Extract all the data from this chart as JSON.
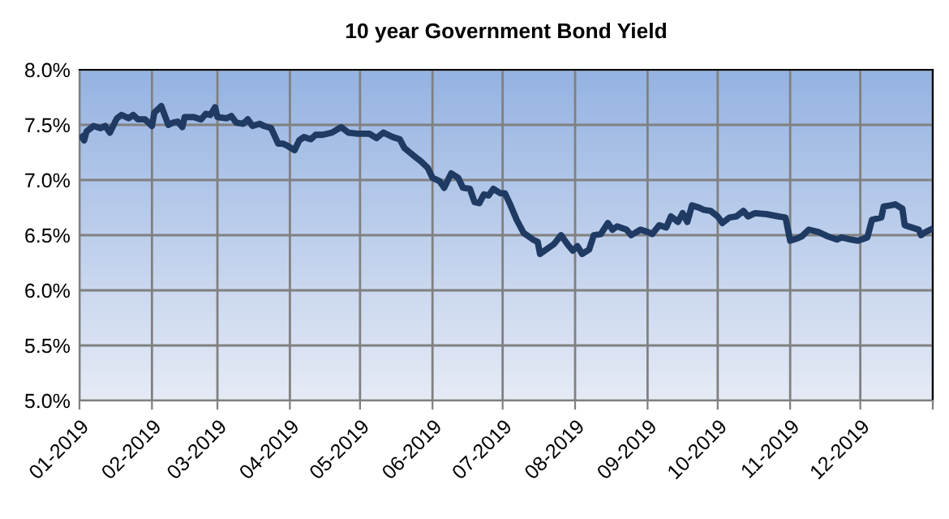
{
  "chart_data": {
    "type": "line",
    "title": "10 year Government Bond Yield",
    "x": [
      "2019-01-02",
      "2019-01-03",
      "2019-01-04",
      "2019-01-07",
      "2019-01-10",
      "2019-01-12",
      "2019-01-14",
      "2019-01-17",
      "2019-01-19",
      "2019-01-22",
      "2019-01-24",
      "2019-01-26",
      "2019-01-29",
      "2019-02-01",
      "2019-02-02",
      "2019-02-05",
      "2019-02-08",
      "2019-02-10",
      "2019-02-12",
      "2019-02-14",
      "2019-02-15",
      "2019-02-19",
      "2019-02-22",
      "2019-02-24",
      "2019-02-26",
      "2019-02-28",
      "2019-03-01",
      "2019-03-05",
      "2019-03-07",
      "2019-03-09",
      "2019-03-12",
      "2019-03-14",
      "2019-03-16",
      "2019-03-19",
      "2019-03-21",
      "2019-03-24",
      "2019-03-27",
      "2019-03-29",
      "2019-03-31",
      "2019-04-03",
      "2019-04-05",
      "2019-04-07",
      "2019-04-10",
      "2019-04-12",
      "2019-04-15",
      "2019-04-19",
      "2019-04-23",
      "2019-04-26",
      "2019-04-30",
      "2019-05-05",
      "2019-05-08",
      "2019-05-11",
      "2019-05-15",
      "2019-05-18",
      "2019-05-20",
      "2019-05-24",
      "2019-05-27",
      "2019-05-30",
      "2019-06-01",
      "2019-06-04",
      "2019-06-06",
      "2019-06-09",
      "2019-06-12",
      "2019-06-14",
      "2019-06-17",
      "2019-06-19",
      "2019-06-21",
      "2019-06-23",
      "2019-06-25",
      "2019-06-27",
      "2019-06-30",
      "2019-07-02",
      "2019-07-04",
      "2019-07-07",
      "2019-07-10",
      "2019-07-14",
      "2019-07-16",
      "2019-07-17",
      "2019-07-19",
      "2019-07-23",
      "2019-07-26",
      "2019-07-29",
      "2019-07-31",
      "2019-08-02",
      "2019-08-04",
      "2019-08-07",
      "2019-08-09",
      "2019-08-12",
      "2019-08-15",
      "2019-08-17",
      "2019-08-19",
      "2019-08-23",
      "2019-08-25",
      "2019-08-29",
      "2019-09-01",
      "2019-09-03",
      "2019-09-06",
      "2019-09-09",
      "2019-09-11",
      "2019-09-14",
      "2019-09-16",
      "2019-09-18",
      "2019-09-20",
      "2019-09-23",
      "2019-09-25",
      "2019-09-28",
      "2019-10-01",
      "2019-10-03",
      "2019-10-06",
      "2019-10-09",
      "2019-10-12",
      "2019-10-14",
      "2019-10-17",
      "2019-10-22",
      "2019-10-27",
      "2019-10-30",
      "2019-11-01",
      "2019-11-04",
      "2019-11-06",
      "2019-11-09",
      "2019-11-13",
      "2019-11-17",
      "2019-11-21",
      "2019-11-23",
      "2019-11-27",
      "2019-11-30",
      "2019-12-04",
      "2019-12-06",
      "2019-12-10",
      "2019-12-11",
      "2019-12-14",
      "2019-12-16",
      "2019-12-19",
      "2019-12-20",
      "2019-12-23",
      "2019-12-26",
      "2019-12-27",
      "2019-12-29",
      "2019-12-31"
    ],
    "series": [
      {
        "color": "#1f3b63",
        "values": [
          7.39,
          7.36,
          7.44,
          7.49,
          7.47,
          7.49,
          7.43,
          7.56,
          7.59,
          7.56,
          7.59,
          7.55,
          7.55,
          7.49,
          7.61,
          7.67,
          7.5,
          7.52,
          7.53,
          7.48,
          7.57,
          7.57,
          7.55,
          7.6,
          7.59,
          7.66,
          7.57,
          7.56,
          7.58,
          7.52,
          7.51,
          7.55,
          7.49,
          7.51,
          7.49,
          7.47,
          7.33,
          7.33,
          7.31,
          7.27,
          7.36,
          7.39,
          7.37,
          7.41,
          7.41,
          7.43,
          7.48,
          7.43,
          7.42,
          7.42,
          7.38,
          7.43,
          7.39,
          7.37,
          7.29,
          7.22,
          7.17,
          7.11,
          7.02,
          6.99,
          6.93,
          7.06,
          7.02,
          6.93,
          6.92,
          6.8,
          6.79,
          6.87,
          6.86,
          6.92,
          6.88,
          6.88,
          6.79,
          6.64,
          6.52,
          6.46,
          6.44,
          6.33,
          6.36,
          6.42,
          6.5,
          6.41,
          6.36,
          6.4,
          6.33,
          6.37,
          6.5,
          6.51,
          6.61,
          6.55,
          6.58,
          6.55,
          6.5,
          6.55,
          6.53,
          6.51,
          6.59,
          6.57,
          6.67,
          6.62,
          6.7,
          6.62,
          6.77,
          6.75,
          6.73,
          6.72,
          6.67,
          6.61,
          6.66,
          6.67,
          6.72,
          6.67,
          6.7,
          6.69,
          6.67,
          6.66,
          6.45,
          6.47,
          6.49,
          6.55,
          6.53,
          6.49,
          6.46,
          6.48,
          6.46,
          6.45,
          6.48,
          6.64,
          6.66,
          6.76,
          6.77,
          6.78,
          6.74,
          6.59,
          6.57,
          6.55,
          6.5,
          6.53,
          6.55
        ]
      }
    ],
    "xlim": [
      "2019-01-01",
      "2020-01-01"
    ],
    "xticks": [
      {
        "value": "2019-01-01",
        "label": "01-2019"
      },
      {
        "value": "2019-02-01",
        "label": "02-2019"
      },
      {
        "value": "2019-03-01",
        "label": "03-2019"
      },
      {
        "value": "2019-04-01",
        "label": "04-2019"
      },
      {
        "value": "2019-05-01",
        "label": "05-2019"
      },
      {
        "value": "2019-06-01",
        "label": "06-2019"
      },
      {
        "value": "2019-07-01",
        "label": "07-2019"
      },
      {
        "value": "2019-08-01",
        "label": "08-2019"
      },
      {
        "value": "2019-09-01",
        "label": "09-2019"
      },
      {
        "value": "2019-10-01",
        "label": "10-2019"
      },
      {
        "value": "2019-11-01",
        "label": "11-2019"
      },
      {
        "value": "2019-12-01",
        "label": "12-2019"
      },
      {
        "value": "2020-01-01",
        "label": null
      }
    ],
    "ylim": [
      5.0,
      8.0
    ],
    "yticks": [
      {
        "value": 5.0,
        "label": "5.0%"
      },
      {
        "value": 5.5,
        "label": "5.5%"
      },
      {
        "value": 6.0,
        "label": "6.0%"
      },
      {
        "value": 6.5,
        "label": "6.5%"
      },
      {
        "value": 7.0,
        "label": "7.0%"
      },
      {
        "value": 7.5,
        "label": "7.5%"
      },
      {
        "value": 8.0,
        "label": "8.0%"
      }
    ],
    "grid": true,
    "marker": "none",
    "line_style": "solid"
  }
}
